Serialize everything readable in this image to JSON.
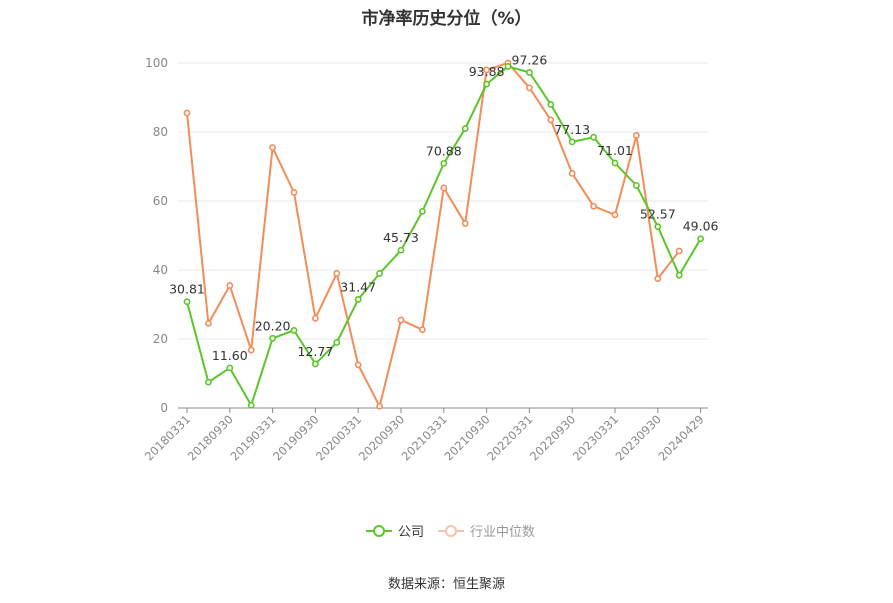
{
  "source": "数据来源：恒生聚源",
  "chart_data": {
    "type": "line",
    "title": "市净率历史分位（%）",
    "ylim": [
      0,
      100
    ],
    "yticks": [
      0,
      20,
      40,
      60,
      80,
      100
    ],
    "grid": true,
    "legend_position": "bottom",
    "x": [
      "20180331",
      "20180630",
      "20180930",
      "20181231",
      "20190331",
      "20190630",
      "20190930",
      "20191231",
      "20200331",
      "20200630",
      "20200930",
      "20201231",
      "20210331",
      "20210630",
      "20210930",
      "20211231",
      "20220331",
      "20220630",
      "20220930",
      "20221231",
      "20230331",
      "20230630",
      "20230930",
      "20231231",
      "20240429"
    ],
    "xticks": [
      "20180331",
      "20180930",
      "20190331",
      "20190930",
      "20200331",
      "20200930",
      "20210331",
      "20210930",
      "20220331",
      "20220930",
      "20230331",
      "20230930",
      "20240429"
    ],
    "series": [
      {
        "name": "公司",
        "color": "#5cc52a",
        "values": [
          30.81,
          7.5,
          11.6,
          0.8,
          20.2,
          22.5,
          12.77,
          19.0,
          31.47,
          39.0,
          45.73,
          57.0,
          70.88,
          81.0,
          93.88,
          99.0,
          97.26,
          88.0,
          77.13,
          78.5,
          71.01,
          64.5,
          52.57,
          38.5,
          49.06
        ],
        "labels": {
          "0": "30.81",
          "2": "11.60",
          "4": "20.20",
          "6": "12.77",
          "8": "31.47",
          "10": "45.73",
          "12": "70.88",
          "14": "93.88",
          "16": "97.26",
          "18": "77.13",
          "20": "71.01",
          "22": "52.57",
          "24": "49.06"
        }
      },
      {
        "name": "行业中位数",
        "color": "#f28d5a",
        "values": [
          85.5,
          24.5,
          35.5,
          16.8,
          75.5,
          62.5,
          26.0,
          39.0,
          12.5,
          0.5,
          25.5,
          22.7,
          63.8,
          53.5,
          98.0,
          100.0,
          92.8,
          83.5,
          68.0,
          58.5,
          56.0,
          79.0,
          37.5,
          45.5,
          null
        ]
      }
    ]
  }
}
